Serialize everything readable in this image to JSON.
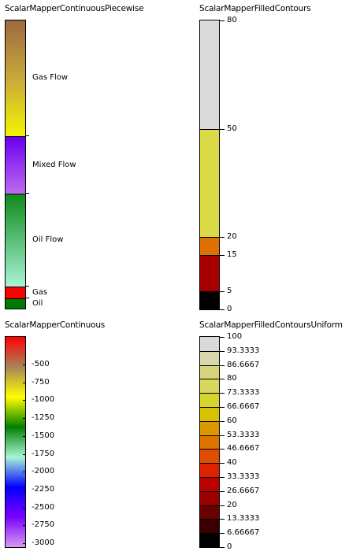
{
  "panels": {
    "continuous_piecewise": {
      "title": "ScalarMapperContinuousPiecewise",
      "segments": [
        {
          "name": "Gas Flow",
          "label": "Gas Flow",
          "colors": [
            "#9b6a3f",
            "#c9a93a",
            "#f5f500"
          ]
        },
        {
          "name": "Mixed Flow",
          "label": "Mixed Flow",
          "colors": [
            "#6a00f0",
            "#c06cf0"
          ]
        },
        {
          "name": "Oil Flow",
          "label": "Oil Flow",
          "colors": [
            "#0f8a1a",
            "#a8f5d6"
          ]
        },
        {
          "name": "Gas",
          "label": "Gas",
          "colors": [
            "#ff0000",
            "#ff0000"
          ]
        },
        {
          "name": "Oil",
          "label": "Oil",
          "colors": [
            "#007a00",
            "#007a00"
          ]
        }
      ]
    },
    "filled_contours": {
      "title": "ScalarMapperFilledContours",
      "levels": [
        {
          "value": "80",
          "num": 80
        },
        {
          "value": "50",
          "num": 50
        },
        {
          "value": "20",
          "num": 20
        },
        {
          "value": "15",
          "num": 15
        },
        {
          "value": "5",
          "num": 5
        },
        {
          "value": "0",
          "num": 0
        }
      ],
      "bands": [
        {
          "from": 50,
          "to": 80,
          "color": "#dadada"
        },
        {
          "from": 20,
          "to": 50,
          "color": "#dada46"
        },
        {
          "from": 15,
          "to": 20,
          "color": "#dd7000"
        },
        {
          "from": 5,
          "to": 15,
          "color": "#a60000"
        },
        {
          "from": 0,
          "to": 5,
          "color": "#000000"
        }
      ]
    },
    "continuous": {
      "title": "ScalarMapperContinuous",
      "gradient_colors": [
        "#ff0000",
        "#a8845a",
        "#ffff00",
        "#008000",
        "#a8f5d6",
        "#0000ff",
        "#7b00ff",
        "#d59bf0"
      ],
      "ticks": [
        "-500",
        "-750",
        "-1000",
        "-1250",
        "-1500",
        "-1750",
        "-2000",
        "-2250",
        "-2500",
        "-2750",
        "-3000"
      ]
    },
    "filled_contours_uniform": {
      "title": "ScalarMapperFilledContoursUniform",
      "levels": [
        "100",
        "93.3333",
        "86.6667",
        "80",
        "73.3333",
        "66.6667",
        "60",
        "53.3333",
        "46.6667",
        "40",
        "33.3333",
        "26.6667",
        "20",
        "13.3333",
        "6.66667",
        "0"
      ],
      "band_colors": [
        "#dadada",
        "#d8d8aa",
        "#d5d57a",
        "#d8d85c",
        "#d5d52e",
        "#d8c100",
        "#dd9700",
        "#de7400",
        "#df4d00",
        "#dd2200",
        "#bf0000",
        "#9a0000",
        "#6a0000",
        "#3a0000",
        "#000000"
      ]
    }
  }
}
